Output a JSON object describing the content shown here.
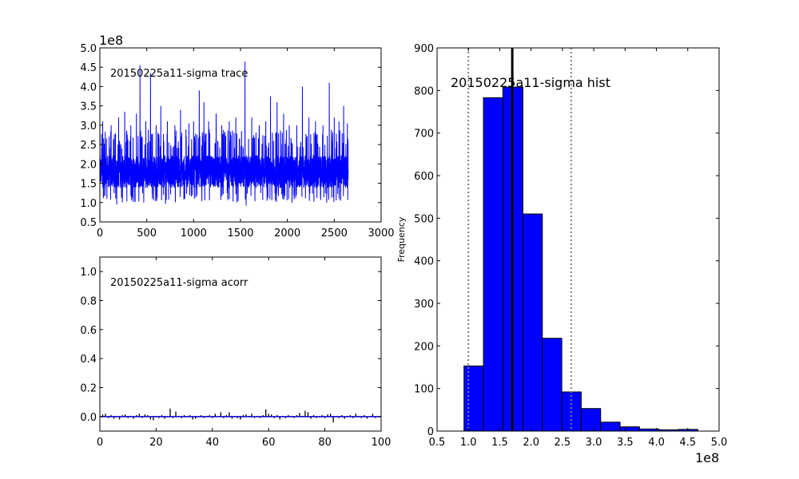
{
  "chart_data": [
    {
      "id": "trace",
      "type": "line",
      "title": "20150225a11-sigma trace",
      "offset_label": "1e8",
      "xlim": [
        0,
        3000
      ],
      "ylim": [
        0.5,
        5.0
      ],
      "xticks": [
        "0",
        "500",
        "1000",
        "1500",
        "2000",
        "2500",
        "3000"
      ],
      "yticks": [
        "0.5",
        "1.0",
        "1.5",
        "2.0",
        "2.5",
        "3.0",
        "3.5",
        "4.0",
        "4.5",
        "5.0"
      ],
      "n_samples": 2650,
      "typical_range": [
        1.2,
        2.4
      ],
      "color": "#0000ff",
      "spikes": [
        {
          "x": 30,
          "y": 3.1
        },
        {
          "x": 120,
          "y": 3.0
        },
        {
          "x": 200,
          "y": 3.2
        },
        {
          "x": 265,
          "y": 3.35
        },
        {
          "x": 330,
          "y": 3.0
        },
        {
          "x": 390,
          "y": 3.3
        },
        {
          "x": 428,
          "y": 4.55
        },
        {
          "x": 490,
          "y": 3.1
        },
        {
          "x": 540,
          "y": 4.35
        },
        {
          "x": 600,
          "y": 3.0
        },
        {
          "x": 650,
          "y": 3.5
        },
        {
          "x": 720,
          "y": 3.1
        },
        {
          "x": 800,
          "y": 3.0
        },
        {
          "x": 860,
          "y": 3.4
        },
        {
          "x": 950,
          "y": 3.05
        },
        {
          "x": 1000,
          "y": 3.1
        },
        {
          "x": 1060,
          "y": 3.9
        },
        {
          "x": 1110,
          "y": 3.6
        },
        {
          "x": 1160,
          "y": 3.1
        },
        {
          "x": 1240,
          "y": 3.3
        },
        {
          "x": 1300,
          "y": 3.0
        },
        {
          "x": 1380,
          "y": 3.1
        },
        {
          "x": 1450,
          "y": 3.2
        },
        {
          "x": 1548,
          "y": 4.65
        },
        {
          "x": 1620,
          "y": 3.2
        },
        {
          "x": 1700,
          "y": 3.0
        },
        {
          "x": 1770,
          "y": 3.1
        },
        {
          "x": 1820,
          "y": 3.75
        },
        {
          "x": 1890,
          "y": 3.6
        },
        {
          "x": 1960,
          "y": 3.3
        },
        {
          "x": 2020,
          "y": 3.0
        },
        {
          "x": 2100,
          "y": 3.0
        },
        {
          "x": 2160,
          "y": 4.0
        },
        {
          "x": 2230,
          "y": 3.2
        },
        {
          "x": 2300,
          "y": 3.1
        },
        {
          "x": 2380,
          "y": 3.0
        },
        {
          "x": 2447,
          "y": 4.1
        },
        {
          "x": 2500,
          "y": 3.2
        },
        {
          "x": 2550,
          "y": 3.1
        },
        {
          "x": 2600,
          "y": 3.5
        },
        {
          "x": 2640,
          "y": 3.05
        }
      ],
      "dips": [
        {
          "x": 180,
          "y": 0.95
        },
        {
          "x": 700,
          "y": 0.97
        },
        {
          "x": 1560,
          "y": 0.92
        },
        {
          "x": 2050,
          "y": 1.0
        },
        {
          "x": 2420,
          "y": 1.0
        }
      ]
    },
    {
      "id": "acorr",
      "type": "bar",
      "title": "20150225a11-sigma acorr",
      "xlim": [
        0,
        100
      ],
      "ylim": [
        -0.1,
        1.1
      ],
      "xticks": [
        "0",
        "20",
        "40",
        "60",
        "80",
        "100"
      ],
      "yticks": [
        "0.0",
        "0.2",
        "0.4",
        "0.6",
        "0.8",
        "1.0"
      ],
      "lags": [
        1,
        2,
        3,
        4,
        5,
        6,
        7,
        8,
        9,
        10,
        11,
        12,
        13,
        14,
        15,
        16,
        17,
        18,
        19,
        20,
        21,
        22,
        23,
        24,
        25,
        26,
        27,
        28,
        29,
        30,
        31,
        32,
        33,
        34,
        35,
        36,
        37,
        38,
        39,
        40,
        41,
        42,
        43,
        44,
        45,
        46,
        47,
        48,
        49,
        50,
        51,
        52,
        53,
        54,
        55,
        56,
        57,
        58,
        59,
        60,
        61,
        62,
        63,
        64,
        65,
        66,
        67,
        68,
        69,
        70,
        71,
        72,
        73,
        74,
        75,
        76,
        77,
        78,
        79,
        80,
        81,
        82,
        83,
        84,
        85,
        86,
        87,
        88,
        89,
        90,
        91,
        92,
        93,
        94,
        95,
        96,
        97,
        98,
        99
      ],
      "values": [
        0.015,
        0.02,
        -0.01,
        0.01,
        -0.015,
        0.005,
        -0.02,
        0.01,
        0.015,
        -0.01,
        0.005,
        -0.015,
        0.01,
        0.02,
        -0.01,
        0.015,
        0.01,
        -0.02,
        -0.025,
        0.005,
        -0.01,
        0.01,
        -0.015,
        -0.005,
        0.055,
        -0.01,
        0.035,
        0.005,
        -0.01,
        0.01,
        -0.005,
        0.01,
        -0.02,
        -0.015,
        0.005,
        0.01,
        -0.01,
        0.005,
        0.01,
        -0.01,
        0.02,
        0.005,
        0.03,
        -0.01,
        0.01,
        0.03,
        -0.015,
        0.005,
        -0.01,
        -0.02,
        0.01,
        0.015,
        0.005,
        0.02,
        -0.01,
        0.005,
        -0.01,
        0.01,
        0.05,
        0.02,
        0.015,
        -0.01,
        0.01,
        -0.02,
        0.005,
        -0.01,
        0.01,
        0.005,
        -0.01,
        0.01,
        0.025,
        0.005,
        0.04,
        0.03,
        -0.015,
        0.01,
        -0.01,
        -0.005,
        0.01,
        -0.01,
        0.015,
        0.02,
        -0.04,
        0.005,
        -0.01,
        0.01,
        -0.015,
        0.005,
        0.01,
        -0.01,
        0.02,
        0.005,
        -0.01,
        0.01,
        -0.015,
        0.005,
        0.02,
        -0.01,
        0.005
      ],
      "color": "#0000ff"
    },
    {
      "id": "hist",
      "type": "bar",
      "title": "20150225a11-sigma hist",
      "ylabel": "Frequency",
      "offset_label": "1e8",
      "xlim": [
        0.5,
        5.0
      ],
      "ylim": [
        0,
        900
      ],
      "xticks": [
        "0.5",
        "1.0",
        "1.5",
        "2.0",
        "2.5",
        "3.0",
        "3.5",
        "4.0",
        "4.5",
        "5.0"
      ],
      "yticks": [
        "0",
        "100",
        "200",
        "300",
        "400",
        "500",
        "600",
        "700",
        "800",
        "900"
      ],
      "bin_edges": [
        0.93,
        1.24,
        1.55,
        1.87,
        2.18,
        2.49,
        2.8,
        3.11,
        3.42,
        3.73,
        4.04,
        4.35,
        4.66
      ],
      "counts": [
        153,
        783,
        808,
        510,
        218,
        92,
        53,
        21,
        10,
        5,
        3,
        4
      ],
      "mean": 1.7,
      "ci_lower": 1.0,
      "ci_upper": 2.64,
      "color": "#0000ff"
    }
  ]
}
